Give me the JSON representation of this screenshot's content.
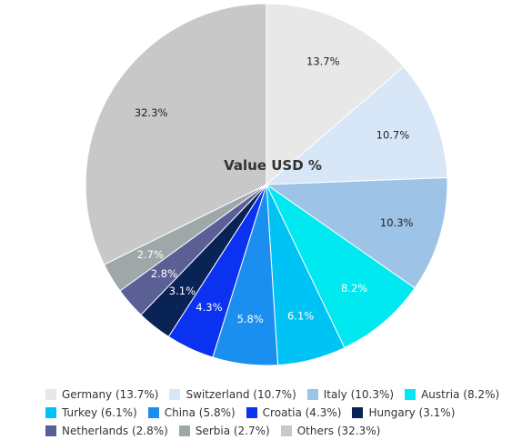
{
  "chart_data": {
    "type": "pie",
    "title": "Value USD %",
    "slices": [
      {
        "name": "Germany",
        "value": 13.7,
        "label": "13.7%",
        "legend": "Germany (13.7%)",
        "color": "#e8e8e8",
        "label_color": "#222222"
      },
      {
        "name": "Switzerland",
        "value": 10.7,
        "label": "10.7%",
        "legend": "Switzerland (10.7%)",
        "color": "#d8e7f7",
        "label_color": "#222222"
      },
      {
        "name": "Italy",
        "value": 10.3,
        "label": "10.3%",
        "legend": "Italy (10.3%)",
        "color": "#9dc3e6",
        "label_color": "#222222"
      },
      {
        "name": "Austria",
        "value": 8.2,
        "label": "8.2%",
        "legend": "Austria (8.2%)",
        "color": "#00e8f0",
        "label_color": "#ffffff"
      },
      {
        "name": "Turkey",
        "value": 6.1,
        "label": "6.1%",
        "legend": "Turkey (6.1%)",
        "color": "#00c3f5",
        "label_color": "#ffffff"
      },
      {
        "name": "China",
        "value": 5.8,
        "label": "5.8%",
        "legend": "China (5.8%)",
        "color": "#1a8ff0",
        "label_color": "#ffffff"
      },
      {
        "name": "Croatia",
        "value": 4.3,
        "label": "4.3%",
        "legend": "Croatia (4.3%)",
        "color": "#0a32f0",
        "label_color": "#ffffff"
      },
      {
        "name": "Hungary",
        "value": 3.1,
        "label": "3.1%",
        "legend": "Hungary (3.1%)",
        "color": "#0a2355",
        "label_color": "#ffffff"
      },
      {
        "name": "Netherlands",
        "value": 2.8,
        "label": "2.8%",
        "legend": "Netherlands (2.8%)",
        "color": "#5a5f96",
        "label_color": "#ffffff"
      },
      {
        "name": "Serbia",
        "value": 2.7,
        "label": "2.7%",
        "legend": "Serbia (2.7%)",
        "color": "#9ea8a8",
        "label_color": "#ffffff"
      },
      {
        "name": "Others",
        "value": 32.3,
        "label": "32.3%",
        "legend": "Others (32.3%)",
        "color": "#c8c8c8",
        "label_color": "#222222"
      }
    ],
    "start_angle": "12 o'clock",
    "direction": "clockwise",
    "legend_position": "bottom"
  }
}
